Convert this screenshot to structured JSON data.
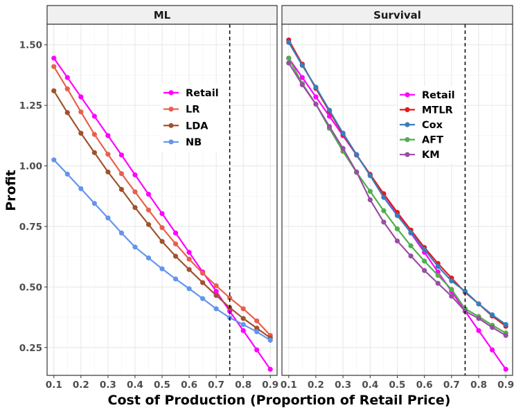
{
  "chart_data": {
    "type": "line",
    "xlabel": "Cost of Production (Proportion of Retail Price)",
    "ylabel": "Profit",
    "xlim": [
      0.075,
      0.925
    ],
    "ylim": [
      0.135,
      1.585
    ],
    "x_ticks": [
      "0.1",
      "0.2",
      "0.3",
      "0.4",
      "0.5",
      "0.6",
      "0.7",
      "0.8",
      "0.9"
    ],
    "y_ticks": [
      "0.25",
      "0.50",
      "0.75",
      "1.00",
      "1.25",
      "1.50"
    ],
    "x_tick_values": [
      0.1,
      0.2,
      0.3,
      0.4,
      0.5,
      0.6,
      0.7,
      0.8,
      0.9
    ],
    "y_tick_values": [
      0.25,
      0.5,
      0.75,
      1.0,
      1.25,
      1.5
    ],
    "vline": 0.75,
    "grid": true,
    "x": [
      0.1,
      0.15,
      0.2,
      0.25,
      0.3,
      0.35,
      0.4,
      0.45,
      0.5,
      0.55,
      0.6,
      0.65,
      0.7,
      0.75,
      0.8,
      0.85,
      0.9
    ],
    "panels": [
      {
        "title": "ML",
        "legend_position": "upper-middle",
        "series": [
          {
            "name": "Retail",
            "color": "#ff00ff",
            "values": [
              1.445,
              1.365,
              1.285,
              1.205,
              1.125,
              1.045,
              0.963,
              0.883,
              0.803,
              0.723,
              0.643,
              0.562,
              0.482,
              0.4,
              0.32,
              0.24,
              0.16
            ]
          },
          {
            "name": "LR",
            "color": "#e8604c",
            "values": [
              1.41,
              1.318,
              1.223,
              1.13,
              1.048,
              0.968,
              0.893,
              0.818,
              0.745,
              0.678,
              0.615,
              0.557,
              0.505,
              0.455,
              0.41,
              0.36,
              0.3
            ]
          },
          {
            "name": "LDA",
            "color": "#a0522d",
            "values": [
              1.31,
              1.22,
              1.135,
              1.055,
              0.975,
              0.903,
              0.828,
              0.758,
              0.688,
              0.627,
              0.572,
              0.518,
              0.465,
              0.415,
              0.37,
              0.33,
              0.29
            ]
          },
          {
            "name": "NB",
            "color": "#6495ed",
            "values": [
              1.025,
              0.966,
              0.906,
              0.845,
              0.785,
              0.723,
              0.665,
              0.62,
              0.575,
              0.533,
              0.493,
              0.452,
              0.41,
              0.373,
              0.345,
              0.315,
              0.28
            ]
          }
        ]
      },
      {
        "title": "Survival",
        "legend_position": "upper-middle",
        "series": [
          {
            "name": "Retail",
            "color": "#ff00ff",
            "values": [
              1.445,
              1.365,
              1.285,
              1.205,
              1.125,
              1.045,
              0.963,
              0.883,
              0.803,
              0.723,
              0.643,
              0.562,
              0.482,
              0.4,
              0.32,
              0.24,
              0.16
            ]
          },
          {
            "name": "MTLR",
            "color": "#e41a1c",
            "values": [
              1.52,
              1.42,
              1.32,
              1.225,
              1.13,
              1.045,
              0.965,
              0.885,
              0.808,
              0.735,
              0.663,
              0.597,
              0.537,
              0.478,
              0.43,
              0.38,
              0.338
            ]
          },
          {
            "name": "Cox",
            "color": "#377eb8",
            "values": [
              1.51,
              1.415,
              1.325,
              1.23,
              1.135,
              1.047,
              0.96,
              0.87,
              0.795,
              0.725,
              0.655,
              0.585,
              0.525,
              0.482,
              0.43,
              0.385,
              0.345
            ]
          },
          {
            "name": "AFT",
            "color": "#4daf4a",
            "values": [
              1.445,
              1.34,
              1.255,
              1.155,
              1.06,
              0.973,
              0.895,
              0.815,
              0.74,
              0.67,
              0.607,
              0.548,
              0.49,
              0.41,
              0.378,
              0.342,
              0.31
            ]
          },
          {
            "name": "KM",
            "color": "#984ea3",
            "values": [
              1.425,
              1.335,
              1.255,
              1.163,
              1.072,
              0.975,
              0.86,
              0.768,
              0.69,
              0.628,
              0.568,
              0.515,
              0.462,
              0.4,
              0.37,
              0.333,
              0.3
            ]
          }
        ]
      }
    ]
  }
}
